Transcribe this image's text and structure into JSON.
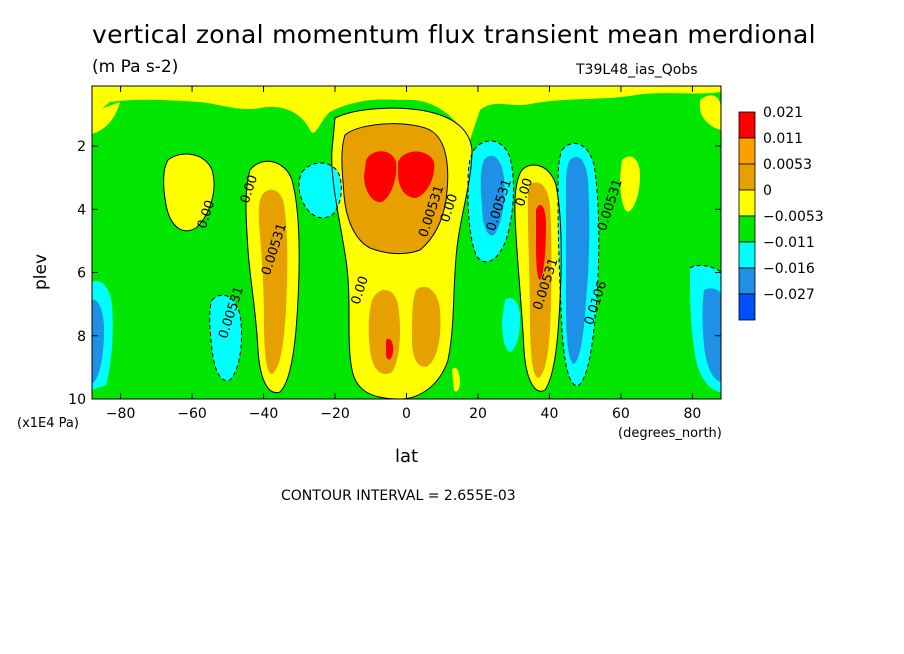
{
  "chart_data": {
    "type": "heatmap",
    "title": "vertical zonal momentum flux transient mean merdional",
    "units": "(m Pa s-2)",
    "dataset": "T39L48_ias_Qobs",
    "xlabel": "lat",
    "xunit": "(degrees_north)",
    "ylabel": "plev",
    "yunit": "(x1E4 Pa)",
    "contour_interval_text": "CONTOUR INTERVAL = 2.655E-03",
    "xlim": [
      -88,
      88
    ],
    "ylim": [
      0.1,
      10
    ],
    "y_inverted": true,
    "x_ticks": [
      -80,
      -60,
      -40,
      -20,
      0,
      20,
      40,
      60,
      80
    ],
    "x_tick_labels": [
      "−80",
      "−60",
      "−40",
      "−20",
      "0",
      "20",
      "40",
      "60",
      "80"
    ],
    "y_ticks": [
      2,
      4,
      6,
      8,
      10
    ],
    "y_tick_labels": [
      "2",
      "4",
      "6",
      "8",
      "10"
    ],
    "legend": {
      "placement": "right",
      "levels": [
        "0.021",
        "0.011",
        "0.0053",
        "0",
        "−0.0053",
        "−0.011",
        "−0.016",
        "−0.027"
      ],
      "colors": [
        "#ff0000",
        "#ffa000",
        "#e6a000",
        "#ffff00",
        "#00e600",
        "#00ffff",
        "#1e90e6",
        "#0050ff"
      ]
    },
    "contour_labels": [
      {
        "text": "0.00",
        "lat": -55,
        "plev": 4.2
      },
      {
        "text": "0.00",
        "lat": -43,
        "plev": 3.4
      },
      {
        "text": "0.00531",
        "lat": -36,
        "plev": 5.3
      },
      {
        "text": "0.00531",
        "lat": -48,
        "plev": 7.3
      },
      {
        "text": "0.00",
        "lat": -12,
        "plev": 6.6
      },
      {
        "text": "0.00531",
        "lat": 8,
        "plev": 4.1
      },
      {
        "text": "0.00",
        "lat": 13,
        "plev": 4.0
      },
      {
        "text": "0.00531",
        "lat": 27,
        "plev": 3.9
      },
      {
        "text": "0.00",
        "lat": 34,
        "plev": 3.5
      },
      {
        "text": "0.00531",
        "lat": 40,
        "plev": 6.4
      },
      {
        "text": "0.0106",
        "lat": 54,
        "plev": 7.0
      },
      {
        "text": "0.00531",
        "lat": 58,
        "plev": 3.9
      }
    ]
  }
}
